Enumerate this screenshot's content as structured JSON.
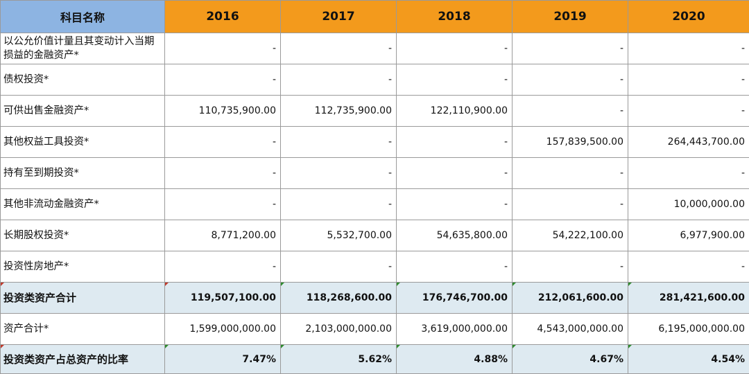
{
  "header": {
    "label": "科目名称",
    "years": [
      "2016",
      "2017",
      "2018",
      "2019",
      "2020"
    ]
  },
  "rows": [
    {
      "label": "以公允价值计量且其变动计入当期损益的金融资产*",
      "values": [
        "-",
        "-",
        "-",
        "-",
        "-"
      ],
      "summary": false
    },
    {
      "label": "债权投资*",
      "values": [
        "-",
        "-",
        "-",
        "-",
        "-"
      ],
      "summary": false
    },
    {
      "label": "可供出售金融资产*",
      "values": [
        "110,735,900.00",
        "112,735,900.00",
        "122,110,900.00",
        "-",
        "-"
      ],
      "summary": false
    },
    {
      "label": "其他权益工具投资*",
      "values": [
        "-",
        "-",
        "-",
        "157,839,500.00",
        "264,443,700.00"
      ],
      "summary": false
    },
    {
      "label": "持有至到期投资*",
      "values": [
        "-",
        "-",
        "-",
        "-",
        "-"
      ],
      "summary": false
    },
    {
      "label": "其他非流动金融资产*",
      "values": [
        "-",
        "-",
        "-",
        "-",
        "10,000,000.00"
      ],
      "summary": false
    },
    {
      "label": "长期股权投资*",
      "values": [
        "8,771,200.00",
        "5,532,700.00",
        "54,635,800.00",
        "54,222,100.00",
        "6,977,900.00"
      ],
      "summary": false
    },
    {
      "label": "投资性房地产*",
      "values": [
        "-",
        "-",
        "-",
        "-",
        "-"
      ],
      "summary": false
    },
    {
      "label": "投资类资产合计",
      "values": [
        "119,507,100.00",
        "118,268,600.00",
        "176,746,700.00",
        "212,061,600.00",
        "281,421,600.00"
      ],
      "summary": true
    },
    {
      "label": "资产合计*",
      "values": [
        "1,599,000,000.00",
        "2,103,000,000.00",
        "3,619,000,000.00",
        "4,543,000,000.00",
        "6,195,000,000.00"
      ],
      "summary": false
    },
    {
      "label": "投资类资产占总资产的比率",
      "values": [
        "7.47%",
        "5.62%",
        "4.88%",
        "4.67%",
        "4.54%"
      ],
      "summary": true
    }
  ],
  "colors": {
    "label_header_bg": "#8db4e2",
    "year_header_bg": "#f39a1c",
    "summary_row_bg": "#deeaf1",
    "grid_line": "#9a9a9a"
  }
}
